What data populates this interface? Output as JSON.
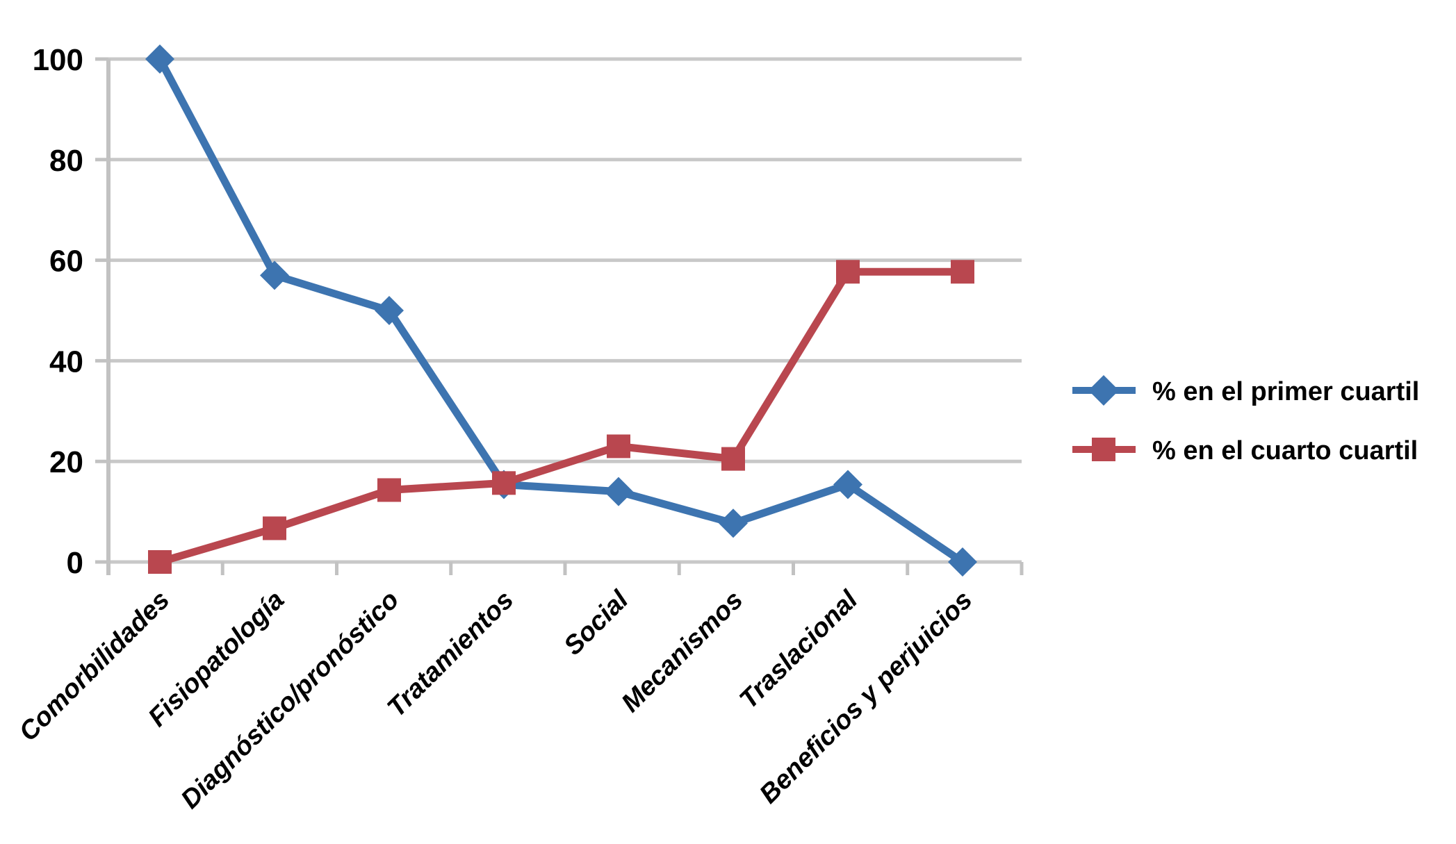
{
  "chart_data": {
    "type": "line",
    "categories": [
      "Comorbilidades",
      "Fisiopatología",
      "Diagnóstico/pronóstico",
      "Tratamientos",
      "Social",
      "Mecanismos",
      "Traslacional",
      "Beneficios y perjuicios"
    ],
    "series": [
      {
        "name": "% en el primer cuartil",
        "marker": "diamond",
        "color": "#3D74B0",
        "values": [
          100,
          57,
          50,
          15.4,
          14,
          7.7,
          15.4,
          0
        ]
      },
      {
        "name": "% en el cuarto cuartil",
        "marker": "square",
        "color": "#B9474F",
        "values": [
          0,
          6.7,
          14.3,
          15.7,
          23,
          20.5,
          57.7,
          57.7
        ]
      }
    ],
    "title": "",
    "xlabel": "",
    "ylabel": "",
    "ylim": [
      0,
      100
    ],
    "yticks": [
      0,
      20,
      40,
      60,
      80,
      100
    ],
    "grid": true,
    "gridline_interval": 20,
    "legend_position": "right-middle",
    "x_tick_rotation_deg": -45
  },
  "colors": {
    "background": "#FFFFFF",
    "grid": "#C8C8C8",
    "axis": "#C2C2C2",
    "text": "#000000",
    "series_primer_cuartil": "#3D74B0",
    "series_cuarto_cuartil": "#B9474F"
  },
  "legend": {
    "items": [
      {
        "label": "% en el primer cuartil",
        "symbol": "diamond-icon"
      },
      {
        "label": "% en el cuarto cuartil",
        "symbol": "square-icon"
      }
    ]
  }
}
